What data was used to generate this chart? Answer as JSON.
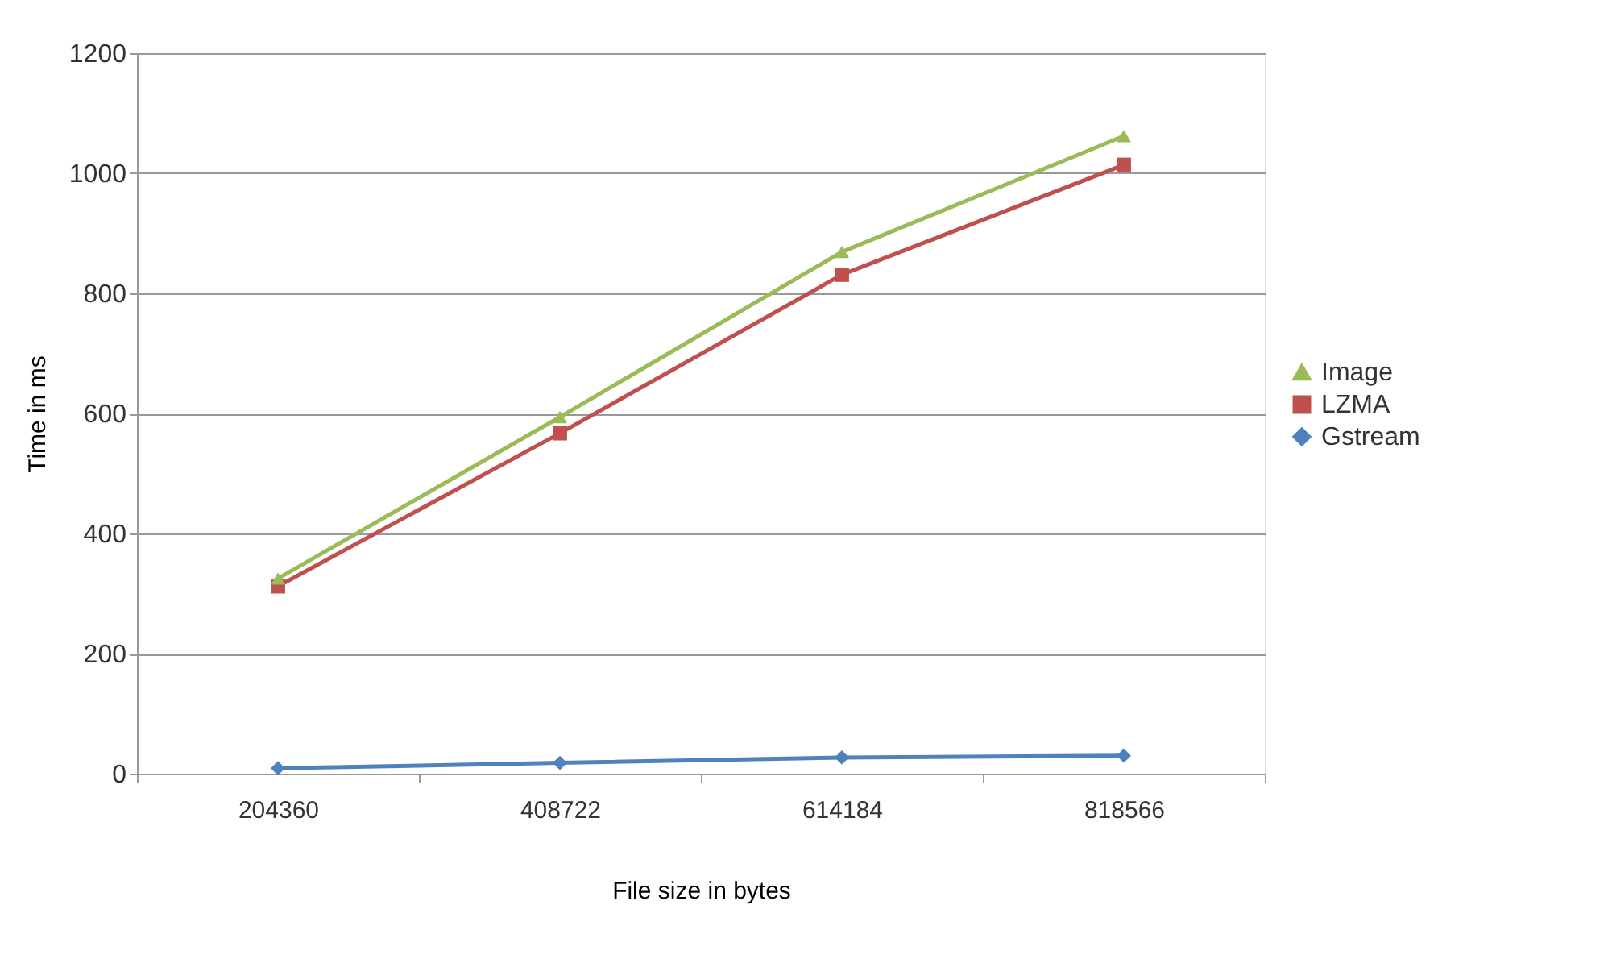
{
  "chart_data": {
    "type": "line",
    "xlabel": "File size in bytes",
    "ylabel": "Time in ms",
    "categories": [
      "204360",
      "408722",
      "614184",
      "818566"
    ],
    "series": [
      {
        "name": "Image",
        "color": "#9bbb59",
        "marker": "triangle",
        "values": [
          325,
          594,
          869,
          1062
        ]
      },
      {
        "name": "LZMA",
        "color": "#c0504d",
        "marker": "square",
        "values": [
          312,
          567,
          831,
          1014
        ]
      },
      {
        "name": "Gstream",
        "color": "#4f81bd",
        "marker": "diamond",
        "values": [
          9,
          18,
          27,
          30
        ]
      }
    ],
    "ylim": [
      0,
      1200
    ],
    "yticks": [
      0,
      200,
      400,
      600,
      800,
      1000,
      1200
    ],
    "grid": "y",
    "legend": "right",
    "line_style": "solid"
  }
}
